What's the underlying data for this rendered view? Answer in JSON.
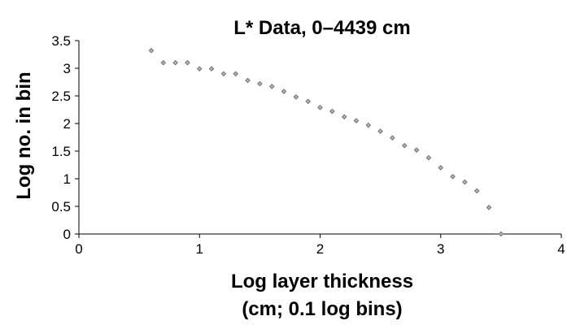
{
  "chart_data": {
    "type": "scatter",
    "title": "L* Data, 0–4439 cm",
    "xlabel_lines": [
      "Log layer thickness",
      "(cm; 0.1 log bins)"
    ],
    "ylabel": "Log no. in bin",
    "xlim": [
      0,
      4
    ],
    "ylim": [
      0,
      3.5
    ],
    "x_ticks": [
      "0",
      "1",
      "2",
      "3",
      "4"
    ],
    "y_ticks": [
      "0",
      "0.5",
      "1",
      "1.5",
      "2",
      "2.5",
      "3",
      "3.5"
    ],
    "grid": false,
    "legend": "none",
    "marker": "diamond",
    "marker_color": "#b9b9b9",
    "series": [
      {
        "x": [
          0.6,
          0.7,
          0.8,
          0.9,
          1.0,
          1.1,
          1.2,
          1.3,
          1.4,
          1.5,
          1.6,
          1.7,
          1.8,
          1.9,
          2.0,
          2.1,
          2.2,
          2.3,
          2.4,
          2.5,
          2.6,
          2.7,
          2.8,
          2.9,
          3.0,
          3.1,
          3.2,
          3.3,
          3.4,
          3.5
        ],
        "y": [
          3.32,
          3.1,
          3.1,
          3.1,
          2.99,
          2.99,
          2.9,
          2.9,
          2.78,
          2.72,
          2.67,
          2.58,
          2.48,
          2.4,
          2.29,
          2.22,
          2.12,
          2.05,
          1.97,
          1.86,
          1.74,
          1.6,
          1.52,
          1.38,
          1.2,
          1.04,
          0.94,
          0.78,
          0.48,
          0.0
        ]
      }
    ]
  }
}
